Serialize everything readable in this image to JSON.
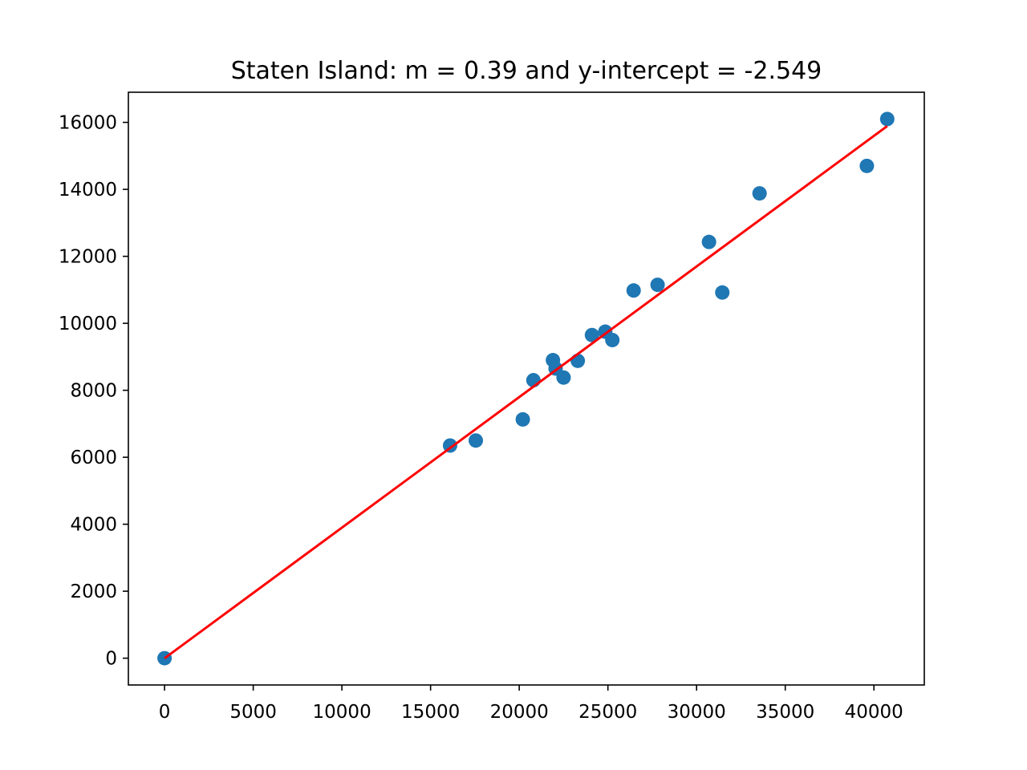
{
  "chart_data": {
    "type": "scatter",
    "title": "Staten Island: m = 0.39 and y-intercept = -2.549",
    "xlabel": "",
    "ylabel": "",
    "xlim": [
      -2040,
      42840
    ],
    "ylim": [
      -800,
      16900
    ],
    "x_ticks": [
      0,
      5000,
      10000,
      15000,
      20000,
      25000,
      30000,
      35000,
      40000
    ],
    "y_ticks": [
      0,
      2000,
      4000,
      6000,
      8000,
      10000,
      12000,
      14000,
      16000
    ],
    "grid": false,
    "legend": "none",
    "series": [
      {
        "kind": "scatter",
        "color": "#1f77b4",
        "points": [
          [
            0,
            0
          ],
          [
            16100,
            6350
          ],
          [
            17550,
            6500
          ],
          [
            20200,
            7130
          ],
          [
            20800,
            8300
          ],
          [
            21900,
            8900
          ],
          [
            22050,
            8650
          ],
          [
            22500,
            8380
          ],
          [
            23300,
            8880
          ],
          [
            24100,
            9650
          ],
          [
            24850,
            9750
          ],
          [
            25250,
            9500
          ],
          [
            26450,
            10980
          ],
          [
            27800,
            11150
          ],
          [
            30700,
            12430
          ],
          [
            31450,
            10920
          ],
          [
            33550,
            13880
          ],
          [
            39600,
            14700
          ],
          [
            40750,
            16100
          ]
        ]
      },
      {
        "kind": "line",
        "color": "#ff0000",
        "points": [
          [
            0,
            -2.549
          ],
          [
            40750,
            15890
          ]
        ]
      }
    ]
  }
}
